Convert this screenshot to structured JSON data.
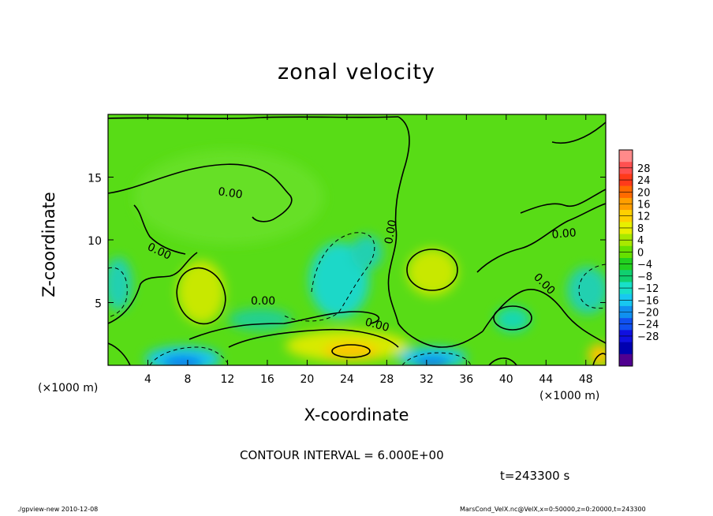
{
  "chart_data": {
    "type": "heatmap",
    "title": "zonal velocity",
    "xlabel": "X-coordinate",
    "ylabel": "Z-coordinate",
    "x_unit_label": "(×1000 m)",
    "xlim": [
      0,
      50
    ],
    "ylim": [
      0,
      20
    ],
    "x_ticks": [
      4,
      8,
      12,
      16,
      20,
      24,
      28,
      32,
      36,
      40,
      44,
      48
    ],
    "y_ticks": [
      5,
      10,
      15
    ],
    "colorbar": {
      "levels": [
        -28,
        -24,
        -20,
        -16,
        -12,
        -8,
        -4,
        0,
        4,
        8,
        12,
        16,
        20,
        24,
        28
      ],
      "labels": [
        "28",
        "24",
        "20",
        "16",
        "12",
        "8",
        "4",
        "0",
        "−4",
        "−8",
        "−12",
        "−16",
        "−20",
        "−24",
        "−28"
      ],
      "colors": [
        "#ff8a8a",
        "#ff5050",
        "#ff3a1a",
        "#ff6a00",
        "#ff9e00",
        "#ffd000",
        "#e8ef00",
        "#a8e800",
        "#66e000",
        "#22d020",
        "#10d070",
        "#18e0c8",
        "#18c8f0",
        "#1090f0",
        "#1050f0",
        "#1010e0",
        "#0000b0",
        "#500090"
      ]
    },
    "contour_label": "0.00",
    "contour_interval_text": "CONTOUR INTERVAL = 6.000E+00",
    "time_text": "t=243300 s"
  },
  "footer": {
    "left": "./gpview-new  2010-12-08",
    "right": "MarsCond_VelX.nc@VelX,x=0:50000,z=0:20000,t=243300"
  }
}
